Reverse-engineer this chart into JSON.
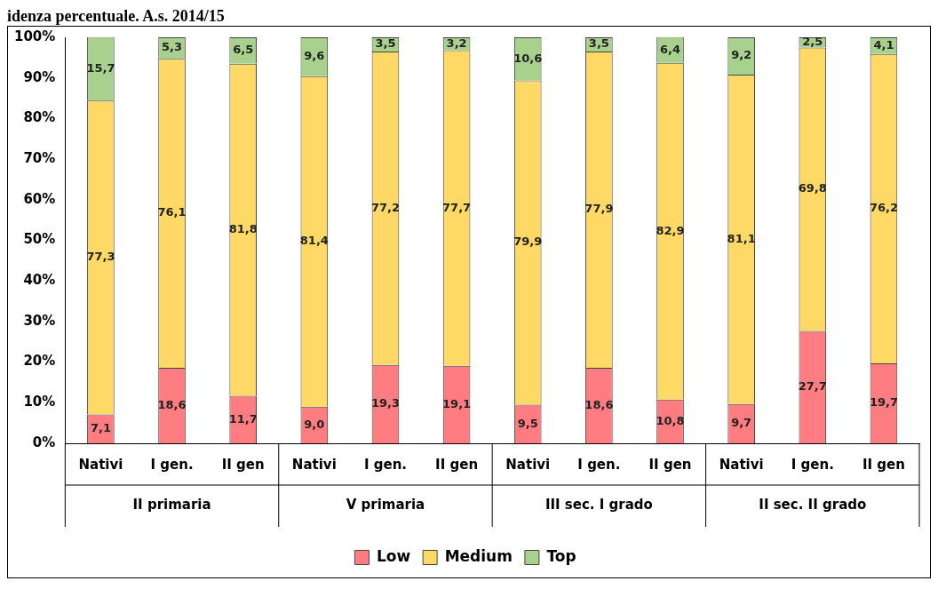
{
  "chart_data": {
    "type": "bar",
    "stacked": true,
    "title": "idenza percentuale. A.s. 2014/15",
    "categories": [
      "Nativi",
      "I gen.",
      "II gen",
      "Nativi",
      "I gen.",
      "II gen",
      "Nativi",
      "I gen.",
      "II gen",
      "Nativi",
      "I gen.",
      "II gen"
    ],
    "annotations": [
      "II primaria",
      "V primaria",
      "III sec. I grado",
      "II sec. II grado"
    ],
    "series": [
      {
        "name": "Low",
        "color": "#ff7c80",
        "values": [
          7.1,
          18.6,
          11.7,
          9.0,
          19.3,
          19.1,
          9.5,
          18.6,
          10.8,
          9.7,
          27.7,
          19.7
        ],
        "value_labels": [
          "7,1",
          "18,6",
          "11,7",
          "9,0",
          "19,3",
          "19,1",
          "9,5",
          "18,6",
          "10,8",
          "9,7",
          "27,7",
          "19,7"
        ]
      },
      {
        "name": "Medium",
        "color": "#ffd966",
        "values": [
          77.3,
          76.1,
          81.8,
          81.4,
          77.2,
          77.7,
          79.9,
          77.9,
          82.9,
          81.1,
          69.8,
          76.2
        ],
        "value_labels": [
          "77,3",
          "76,1",
          "81,8",
          "81,4",
          "77,2",
          "77,7",
          "79,9",
          "77,9",
          "82,9",
          "81,1",
          "69,8",
          "76,2"
        ]
      },
      {
        "name": "Top",
        "color": "#a9d18e",
        "values": [
          15.7,
          5.3,
          6.5,
          9.6,
          3.5,
          3.2,
          10.6,
          3.5,
          6.4,
          9.2,
          2.5,
          4.1
        ],
        "value_labels": [
          "15,7",
          "5,3",
          "6,5",
          "9,6",
          "3,5",
          "3,2",
          "10,6",
          "3,5",
          "6,4",
          "9,2",
          "2,5",
          "4,1"
        ]
      }
    ],
    "ylim": [
      0,
      100
    ],
    "yticks": [
      {
        "value": 0,
        "label": "0%"
      },
      {
        "value": 10,
        "label": "10%"
      },
      {
        "value": 20,
        "label": "20%"
      },
      {
        "value": 30,
        "label": "30%"
      },
      {
        "value": 40,
        "label": "40%"
      },
      {
        "value": 50,
        "label": "50%"
      },
      {
        "value": 60,
        "label": "60%"
      },
      {
        "value": 70,
        "label": "70%"
      },
      {
        "value": 80,
        "label": "80%"
      },
      {
        "value": 90,
        "label": "90%"
      },
      {
        "value": 100,
        "label": "100%"
      }
    ],
    "grid": false,
    "legend": "bottom"
  }
}
